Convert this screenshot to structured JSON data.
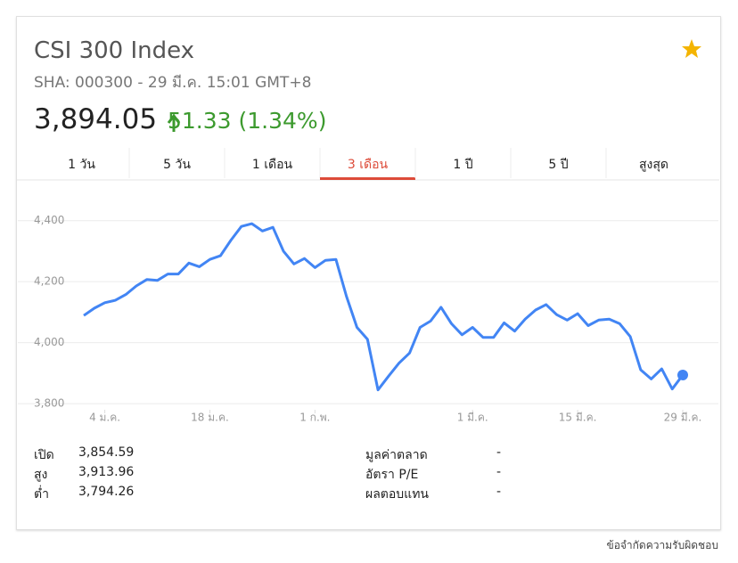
{
  "header": {
    "title": "CSI 300 Index",
    "subtitle": "SHA: 000300 - 29 มี.ค. 15:01 GMT+8",
    "price": "3,894.05",
    "change": "51.33 (1.34%)"
  },
  "tabs": [
    "1 วัน",
    "5 วัน",
    "1 เดือน",
    "3 เดือน",
    "1 ปี",
    "5 ปี",
    "สูงสุด"
  ],
  "active_tab": 3,
  "chart_data": {
    "type": "line",
    "categories": [
      null,
      null,
      "4 ม.ค.",
      null,
      null,
      null,
      null,
      null,
      null,
      null,
      null,
      null,
      "18 ม.ค.",
      null,
      null,
      null,
      null,
      null,
      null,
      null,
      null,
      null,
      "1 ก.พ.",
      null,
      null,
      null,
      null,
      null,
      null,
      null,
      null,
      null,
      null,
      null,
      null,
      null,
      null,
      "1 มี.ค.",
      null,
      null,
      null,
      null,
      null,
      null,
      null,
      null,
      null,
      "15 มี.ค.",
      null,
      null,
      null,
      null,
      null,
      null,
      null,
      null,
      null,
      "29 มี.ค."
    ],
    "series": [
      {
        "color": "#4285f4",
        "values": [
          4089,
          4113,
          4131,
          4139,
          4158,
          4186,
          4207,
          4204,
          4225,
          4225,
          4261,
          4249,
          4273,
          4285,
          4336,
          4381,
          4390,
          4366,
          4378,
          4300,
          4258,
          4276,
          4246,
          4270,
          4273,
          4152,
          4050,
          4011,
          3845,
          3890,
          3933,
          3966,
          4050,
          4071,
          4116,
          4062,
          4026,
          4050,
          4017,
          4017,
          4065,
          4038,
          4077,
          4107,
          4125,
          4092,
          4074,
          4095,
          4056,
          4074,
          4077,
          4062,
          4020,
          3911,
          3881,
          3914,
          3848,
          3894
        ]
      }
    ],
    "ylim": [
      3780,
      4440
    ],
    "yticks": [
      {
        "value": 3800,
        "label": "3,800"
      },
      {
        "value": 4000,
        "label": "4,000"
      },
      {
        "value": 4200,
        "label": "4,200"
      },
      {
        "value": 4400,
        "label": "4,400"
      }
    ],
    "grid": true
  },
  "stats": {
    "left": [
      [
        "เปิด",
        "3,854.59"
      ],
      [
        "สูง",
        "3,913.96"
      ],
      [
        "ต่ำ",
        "3,794.26"
      ]
    ],
    "right": [
      [
        "มูลค่าตลาด",
        "-"
      ],
      [
        "อัตรา P/E",
        "-"
      ],
      [
        "ผลตอบแทน",
        "-"
      ]
    ]
  },
  "footer": "ข้อจำกัดความรับผิดชอบ"
}
